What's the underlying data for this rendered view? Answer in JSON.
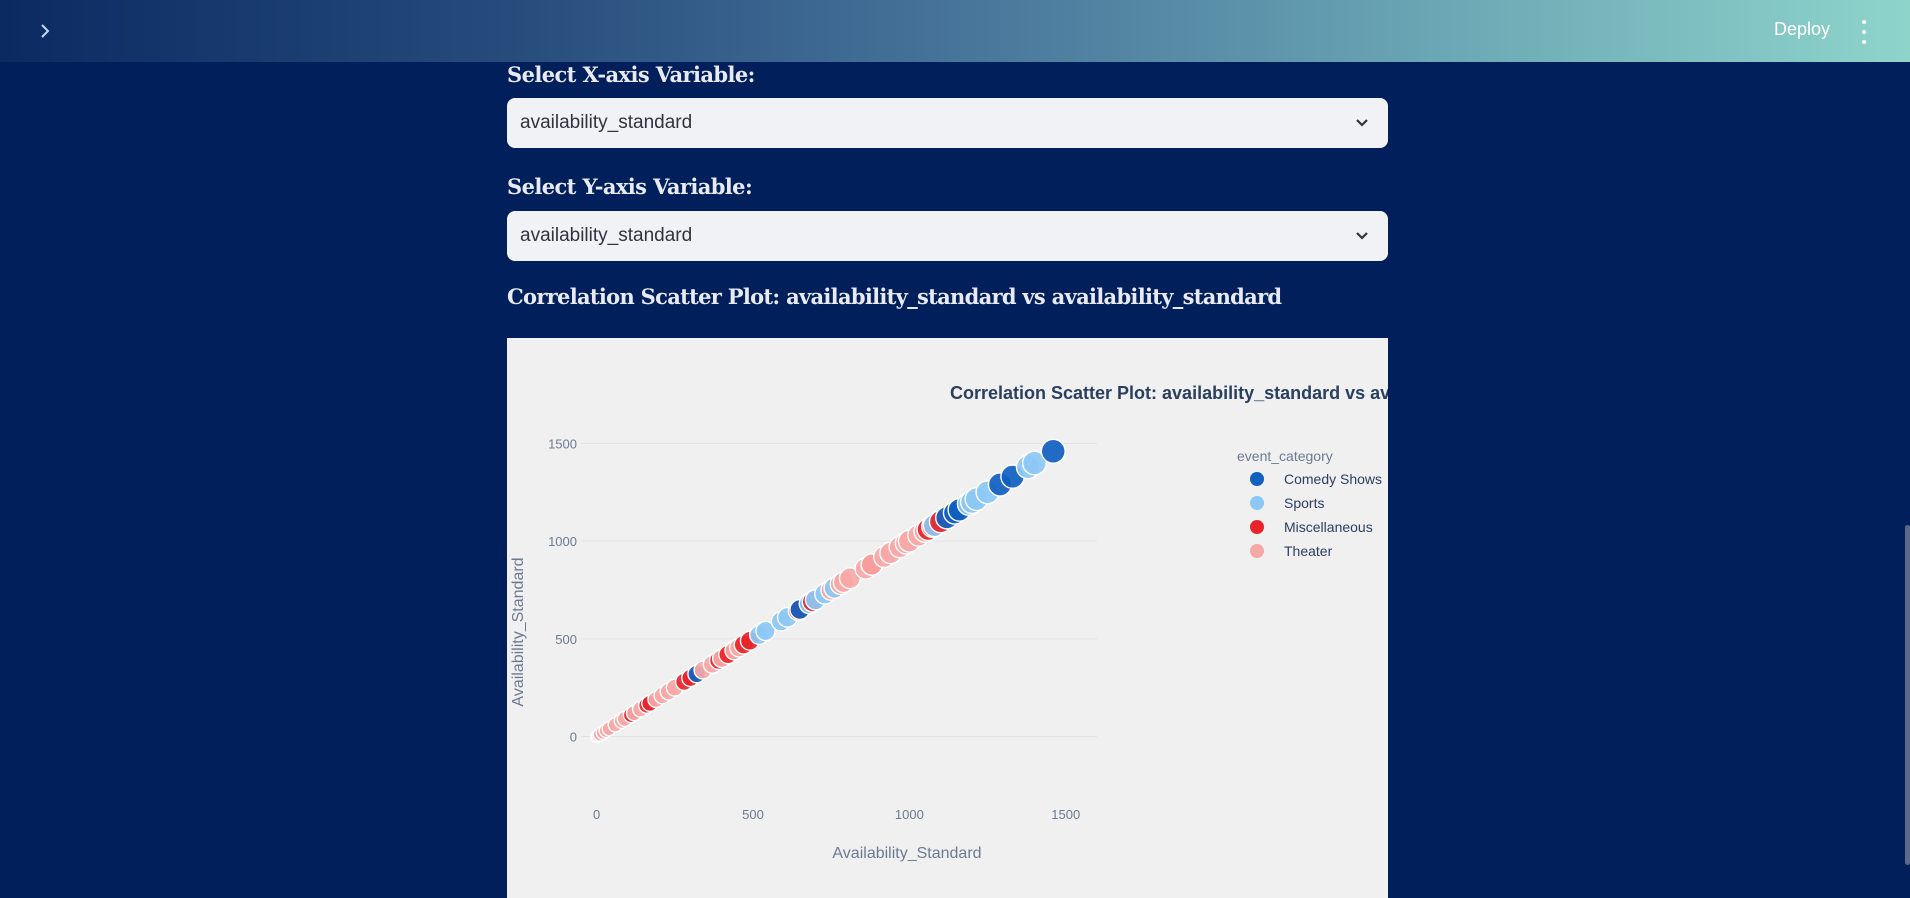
{
  "header": {
    "deploy_label": "Deploy",
    "expand_icon": "chevron-right-icon",
    "menu_icon": "kebab-menu-icon"
  },
  "controls": {
    "x_label": "Select X-axis Variable:",
    "x_value": "availability_standard",
    "y_label": "Select Y-axis Variable:",
    "y_value": "availability_standard"
  },
  "section_title": "Correlation Scatter Plot: availability_standard vs availability_standard",
  "colors": {
    "background": "#011f5a",
    "Comedy Shows": "#1060c0",
    "Sports": "#8cc8f5",
    "Miscellaneous": "#e8242a",
    "Theater": "#f7a8a6"
  },
  "chart_data": {
    "type": "scatter",
    "title": "Correlation Scatter Plot: availability_standard vs availability_standard",
    "xlabel": "Availability_Standard",
    "ylabel": "Availability_Standard",
    "xlim": [
      -50,
      1600
    ],
    "ylim": [
      -110,
      1620
    ],
    "xticks": [
      0,
      500,
      1000,
      1500
    ],
    "yticks": [
      0,
      500,
      1000,
      1500
    ],
    "grid": true,
    "legend_title": "event_category",
    "legend_position": "top-right",
    "series": [
      {
        "name": "Comedy Shows",
        "x": [
          1460,
          1330,
          1290,
          1160,
          1145,
          1120,
          650,
          320
        ],
        "y": [
          1460,
          1330,
          1290,
          1160,
          1145,
          1120,
          650,
          320
        ]
      },
      {
        "name": "Sports",
        "x": [
          1400,
          1380,
          1250,
          1215,
          1200,
          1190,
          1080,
          760,
          730,
          700,
          680,
          610,
          590,
          540,
          520
        ],
        "y": [
          1400,
          1380,
          1250,
          1215,
          1200,
          1190,
          1080,
          760,
          730,
          700,
          680,
          610,
          590,
          540,
          520
        ]
      },
      {
        "name": "Miscellaneous",
        "x": [
          1100,
          1075,
          1060,
          880,
          690,
          645,
          490,
          470,
          420,
          390,
          300,
          280,
          170,
          160,
          110
        ],
        "y": [
          1100,
          1075,
          1060,
          880,
          690,
          645,
          490,
          470,
          420,
          390,
          300,
          280,
          170,
          160,
          110
        ]
      },
      {
        "name": "Theater",
        "x": [
          1050,
          1030,
          1000,
          990,
          970,
          940,
          920,
          880,
          860,
          810,
          790,
          780,
          750,
          455,
          440,
          400,
          370,
          340,
          250,
          230,
          210,
          190,
          140,
          120,
          90,
          80,
          60,
          40,
          30,
          20,
          10,
          5,
          0
        ],
        "y": [
          1050,
          1030,
          1000,
          990,
          970,
          940,
          920,
          880,
          860,
          810,
          790,
          780,
          750,
          455,
          440,
          400,
          370,
          340,
          250,
          230,
          210,
          190,
          140,
          120,
          90,
          80,
          60,
          40,
          30,
          20,
          10,
          5,
          0
        ]
      }
    ]
  }
}
